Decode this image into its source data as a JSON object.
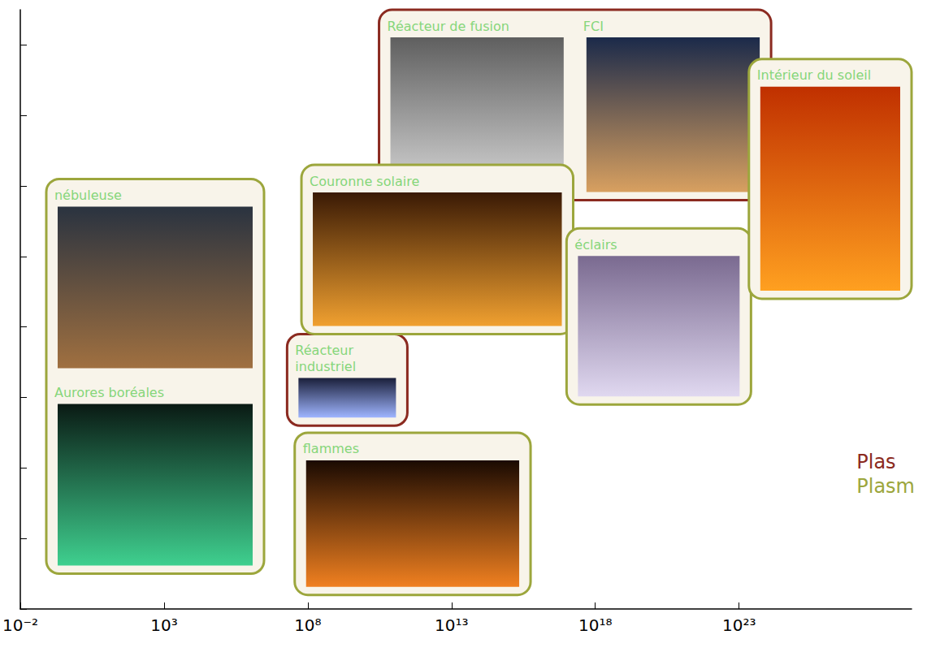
{
  "chart_data": {
    "type": "region",
    "log": "x",
    "xlim": [
      0.01,
      1e+29
    ],
    "xticks": [
      {
        "value": 0.01,
        "label": "10⁻²"
      },
      {
        "value": 1000,
        "label": "10³"
      },
      {
        "value": 100000000.0,
        "label": "10⁸"
      },
      {
        "value": 10000000000000.0,
        "label": "10¹³"
      },
      {
        "value": 1e+18,
        "label": "10¹⁸"
      },
      {
        "value": 1e+23,
        "label": "10²³"
      }
    ],
    "ylim": [
      0,
      8.5
    ],
    "yticks": [
      0,
      1,
      2,
      3,
      4,
      5,
      6,
      7,
      8
    ],
    "tick_labels": "x",
    "grid": false,
    "legend": "right",
    "series": [
      {
        "name": "Plas",
        "color": "#8b2a20",
        "regions": [
          {
            "labels": [
              "Réacteur de fusion",
              "FCI"
            ],
            "x": [
              30000000000.0,
              1.3e+24
            ],
            "y": [
              5.8,
              8.5
            ]
          },
          {
            "labels": [
              "Réacteur industriel"
            ],
            "x": [
              19000000.0,
              290000000000.0
            ],
            "y": [
              2.6,
              3.9
            ]
          }
        ]
      },
      {
        "name": "Plasm",
        "color": "#9ca63c",
        "regions": [
          {
            "labels": [
              "nébuleuse",
              "Aurores boréales"
            ],
            "x": [
              0.08,
              3000000.0
            ],
            "y": [
              0.5,
              6.1
            ]
          },
          {
            "labels": [
              "Couronne solaire"
            ],
            "x": [
              60000000.0,
              1.7e+17
            ],
            "y": [
              3.9,
              6.3
            ]
          },
          {
            "labels": [
              "flammes"
            ],
            "x": [
              35000000.0,
              5600000000000000.0
            ],
            "y": [
              0.2,
              2.5
            ]
          },
          {
            "labels": [
              "éclairs"
            ],
            "x": [
              1e+17,
              2.6e+23
            ],
            "y": [
              2.9,
              5.4
            ]
          },
          {
            "labels": [
              "Intérieur du soleil"
            ],
            "x": [
              2.2e+23,
              1e+29
            ],
            "y": [
              4.4,
              7.8
            ]
          }
        ]
      }
    ]
  }
}
